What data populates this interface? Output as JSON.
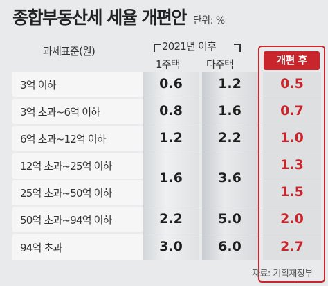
{
  "title": "종합부동산세 세율 개편안",
  "unit": "단위: %",
  "headers": {
    "basis": "과세표준(원)",
    "since_2021": "2021년 이후",
    "one_home": "1주택",
    "multi_home": "다주택",
    "reform": "개편 후"
  },
  "rows": [
    {
      "label": "3억 이하",
      "one": "0.6",
      "multi": "1.2",
      "reform": "0.5"
    },
    {
      "label": "3억 초과~6억 이하",
      "one": "0.8",
      "multi": "1.6",
      "reform": "0.7"
    },
    {
      "label": "6억 초과~12억 이하",
      "one": "1.2",
      "multi": "2.2",
      "reform": "1.0"
    },
    {
      "label": "12억 초과~25억 이하",
      "one": "1.6",
      "multi": "3.6",
      "reform": "1.3"
    },
    {
      "label": "25억 초과~50억 이하",
      "reform": "1.5"
    },
    {
      "label": "50억 초과~94억 이하",
      "one": "2.2",
      "multi": "5.0",
      "reform": "2.0"
    },
    {
      "label": "94억 초과",
      "one": "3.0",
      "multi": "6.0",
      "reform": "2.7"
    }
  ],
  "source": "자료: 기획재정부",
  "colors": {
    "accent": "#c8252c",
    "background": "#e8eaec"
  }
}
